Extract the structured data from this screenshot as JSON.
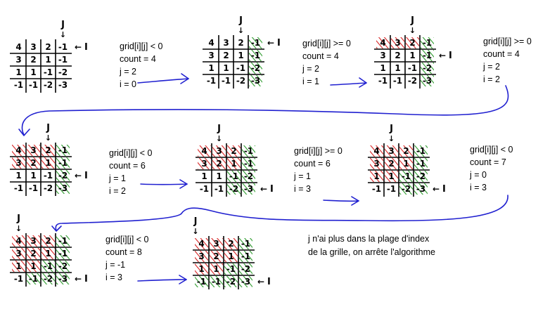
{
  "grid_values": [
    [
      "4",
      "3",
      "2",
      "-1"
    ],
    [
      "3",
      "2",
      "1",
      "-1"
    ],
    [
      "1",
      "1",
      "-1",
      "-2"
    ],
    [
      "-1",
      "-1",
      "-2",
      "-3"
    ]
  ],
  "pointer_labels": {
    "column": "J",
    "row": "I",
    "arrow_down": "↓",
    "arrow_left": "←"
  },
  "colors": {
    "grid": "#000000",
    "visited_positive": "#d62020",
    "counted_negative": "#2a9a2a",
    "connector": "#2020d0"
  },
  "steps": [
    {
      "condition": "grid[i][j] < 0",
      "count": "count = 4",
      "j": "j = 2",
      "i": "i = 0",
      "pointer_row": 0,
      "pointer_col": 3,
      "red_cells": [],
      "green_cells": []
    },
    {
      "condition": "grid[i][j] >= 0",
      "count": "count = 4",
      "j": "j = 2",
      "i": "i = 1",
      "pointer_row": 0,
      "pointer_col": 2,
      "red_cells": [],
      "green_cells": [
        [
          0,
          3
        ],
        [
          1,
          3
        ],
        [
          2,
          3
        ],
        [
          3,
          3
        ]
      ]
    },
    {
      "condition": "grid[i][j] >= 0",
      "count": "count = 4",
      "j": "j = 2",
      "i": "i = 2",
      "pointer_row": 1,
      "pointer_col": 2,
      "red_cells": [
        [
          0,
          0
        ],
        [
          0,
          1
        ],
        [
          0,
          2
        ]
      ],
      "green_cells": [
        [
          0,
          3
        ],
        [
          1,
          3
        ],
        [
          2,
          3
        ],
        [
          3,
          3
        ]
      ]
    },
    {
      "condition": "grid[i][j] < 0",
      "count": "count = 6",
      "j": "j = 1",
      "i": "i = 2",
      "pointer_row": 2,
      "pointer_col": 2,
      "red_cells": [
        [
          0,
          0
        ],
        [
          0,
          1
        ],
        [
          0,
          2
        ],
        [
          1,
          0
        ],
        [
          1,
          1
        ],
        [
          1,
          2
        ]
      ],
      "green_cells": [
        [
          0,
          3
        ],
        [
          1,
          3
        ],
        [
          2,
          3
        ],
        [
          3,
          3
        ]
      ]
    },
    {
      "condition": "grid[i][j] >= 0",
      "count": "count = 6",
      "j": "j = 1",
      "i": "i = 3",
      "pointer_row": 3,
      "pointer_col": 1,
      "red_cells": [
        [
          0,
          0
        ],
        [
          0,
          1
        ],
        [
          0,
          2
        ],
        [
          1,
          0
        ],
        [
          1,
          1
        ],
        [
          1,
          2
        ]
      ],
      "green_cells": [
        [
          0,
          3
        ],
        [
          1,
          3
        ],
        [
          2,
          3
        ],
        [
          3,
          3
        ],
        [
          2,
          2
        ],
        [
          3,
          2
        ]
      ]
    },
    {
      "condition": "grid[i][j] < 0",
      "count": "count = 7",
      "j": "j = 0",
      "i": "i = 3",
      "pointer_row": 3,
      "pointer_col": 1,
      "red_cells": [
        [
          0,
          0
        ],
        [
          0,
          1
        ],
        [
          0,
          2
        ],
        [
          1,
          0
        ],
        [
          1,
          1
        ],
        [
          1,
          2
        ],
        [
          2,
          0
        ],
        [
          2,
          1
        ]
      ],
      "green_cells": [
        [
          0,
          3
        ],
        [
          1,
          3
        ],
        [
          2,
          3
        ],
        [
          3,
          3
        ],
        [
          2,
          2
        ],
        [
          3,
          2
        ]
      ]
    },
    {
      "condition": "grid[i][j] < 0",
      "count": "count = 8",
      "j": "j = -1",
      "i": "i = 3",
      "pointer_row": 3,
      "pointer_col": 0,
      "red_cells": [
        [
          0,
          0
        ],
        [
          0,
          1
        ],
        [
          0,
          2
        ],
        [
          1,
          0
        ],
        [
          1,
          1
        ],
        [
          1,
          2
        ],
        [
          2,
          0
        ],
        [
          2,
          1
        ]
      ],
      "green_cells": [
        [
          0,
          3
        ],
        [
          1,
          3
        ],
        [
          2,
          3
        ],
        [
          3,
          3
        ],
        [
          2,
          2
        ],
        [
          3,
          2
        ],
        [
          3,
          1
        ]
      ]
    },
    {
      "condition": "",
      "count": "",
      "j": "",
      "i": "",
      "pointer_row": 3,
      "pointer_col": -1,
      "red_cells": [
        [
          0,
          0
        ],
        [
          0,
          1
        ],
        [
          0,
          2
        ],
        [
          1,
          0
        ],
        [
          1,
          1
        ],
        [
          1,
          2
        ],
        [
          2,
          0
        ],
        [
          2,
          1
        ]
      ],
      "green_cells": [
        [
          0,
          3
        ],
        [
          1,
          3
        ],
        [
          2,
          3
        ],
        [
          3,
          3
        ],
        [
          2,
          2
        ],
        [
          3,
          2
        ],
        [
          3,
          1
        ],
        [
          3,
          0
        ]
      ]
    }
  ],
  "conclusion": [
    "j n'ai plus dans la plage d'index",
    "de la grille, on arrête l'algorithme"
  ]
}
